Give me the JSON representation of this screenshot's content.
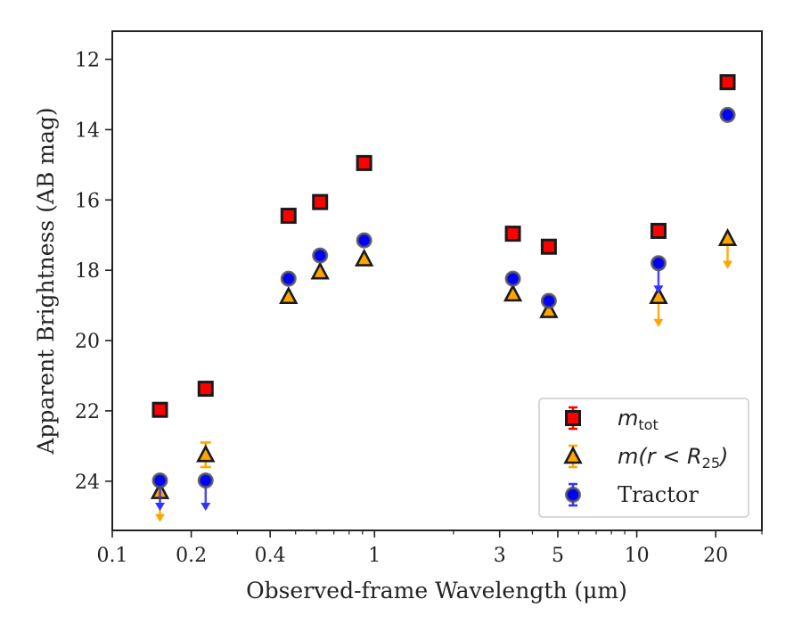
{
  "chart_data": {
    "type": "scatter",
    "xscale": "log",
    "yaxis_inverted": true,
    "xlim": [
      0.1,
      30
    ],
    "ylim": [
      25.4,
      11.2
    ],
    "xlabel": "Observed-frame Wavelength (μm)",
    "ylabel": "Apparent Brightness (AB mag)",
    "xticks": [
      {
        "value": 0.1,
        "label": "0.1"
      },
      {
        "value": 0.2,
        "label": "0.2"
      },
      {
        "value": 0.4,
        "label": "0.4"
      },
      {
        "value": 1,
        "label": "1"
      },
      {
        "value": 3,
        "label": "3"
      },
      {
        "value": 5,
        "label": "5"
      },
      {
        "value": 10,
        "label": "10"
      },
      {
        "value": 20,
        "label": "20"
      }
    ],
    "yticks": [
      12,
      14,
      16,
      18,
      20,
      22,
      24
    ],
    "legend": {
      "position": "lower right",
      "entries": [
        {
          "main": "m",
          "sub": "tot",
          "suffix": ""
        },
        {
          "main": "m(r < R",
          "sub": "25",
          "suffix": ")"
        },
        {
          "main": "Tractor",
          "sub": "",
          "suffix": ""
        }
      ]
    },
    "series": [
      {
        "key": "mtot",
        "marker": "square",
        "fill": "#ff0000",
        "edge": "#1a1a1a",
        "errcolor": "#ff0000",
        "points": [
          {
            "x": 0.152,
            "y": 21.97
          },
          {
            "x": 0.227,
            "y": 21.37
          },
          {
            "x": 0.47,
            "y": 16.45
          },
          {
            "x": 0.62,
            "y": 16.06
          },
          {
            "x": 0.913,
            "y": 14.95
          },
          {
            "x": 3.37,
            "y": 16.96
          },
          {
            "x": 4.62,
            "y": 17.33
          },
          {
            "x": 12.1,
            "y": 16.88
          },
          {
            "x": 22.2,
            "y": 12.65
          }
        ]
      },
      {
        "key": "m_r25",
        "marker": "triangle",
        "fill": "#ffa500",
        "edge": "#1a1a1a",
        "errcolor": "#ffa500",
        "points": [
          {
            "x": 0.152,
            "y": 24.3,
            "upper_limit": true
          },
          {
            "x": 0.227,
            "y": 23.25,
            "err": 0.35
          },
          {
            "x": 0.47,
            "y": 18.75
          },
          {
            "x": 0.62,
            "y": 18.05
          },
          {
            "x": 0.913,
            "y": 17.68
          },
          {
            "x": 3.37,
            "y": 18.68
          },
          {
            "x": 4.62,
            "y": 19.15
          },
          {
            "x": 12.1,
            "y": 18.75,
            "upper_limit": true
          },
          {
            "x": 22.2,
            "y": 17.1,
            "upper_limit": true
          }
        ]
      },
      {
        "key": "tractor",
        "marker": "circle",
        "fill": "#0000ff",
        "edge": "#555555",
        "errcolor": "#3333ff",
        "points": [
          {
            "x": 0.152,
            "y": 23.98,
            "upper_limit": true
          },
          {
            "x": 0.227,
            "y": 23.98,
            "upper_limit": true
          },
          {
            "x": 0.47,
            "y": 18.24
          },
          {
            "x": 0.62,
            "y": 17.58
          },
          {
            "x": 0.913,
            "y": 17.15
          },
          {
            "x": 3.37,
            "y": 18.24
          },
          {
            "x": 4.62,
            "y": 18.87
          },
          {
            "x": 12.1,
            "y": 17.8,
            "upper_limit": true
          },
          {
            "x": 22.2,
            "y": 13.58
          }
        ]
      }
    ]
  }
}
